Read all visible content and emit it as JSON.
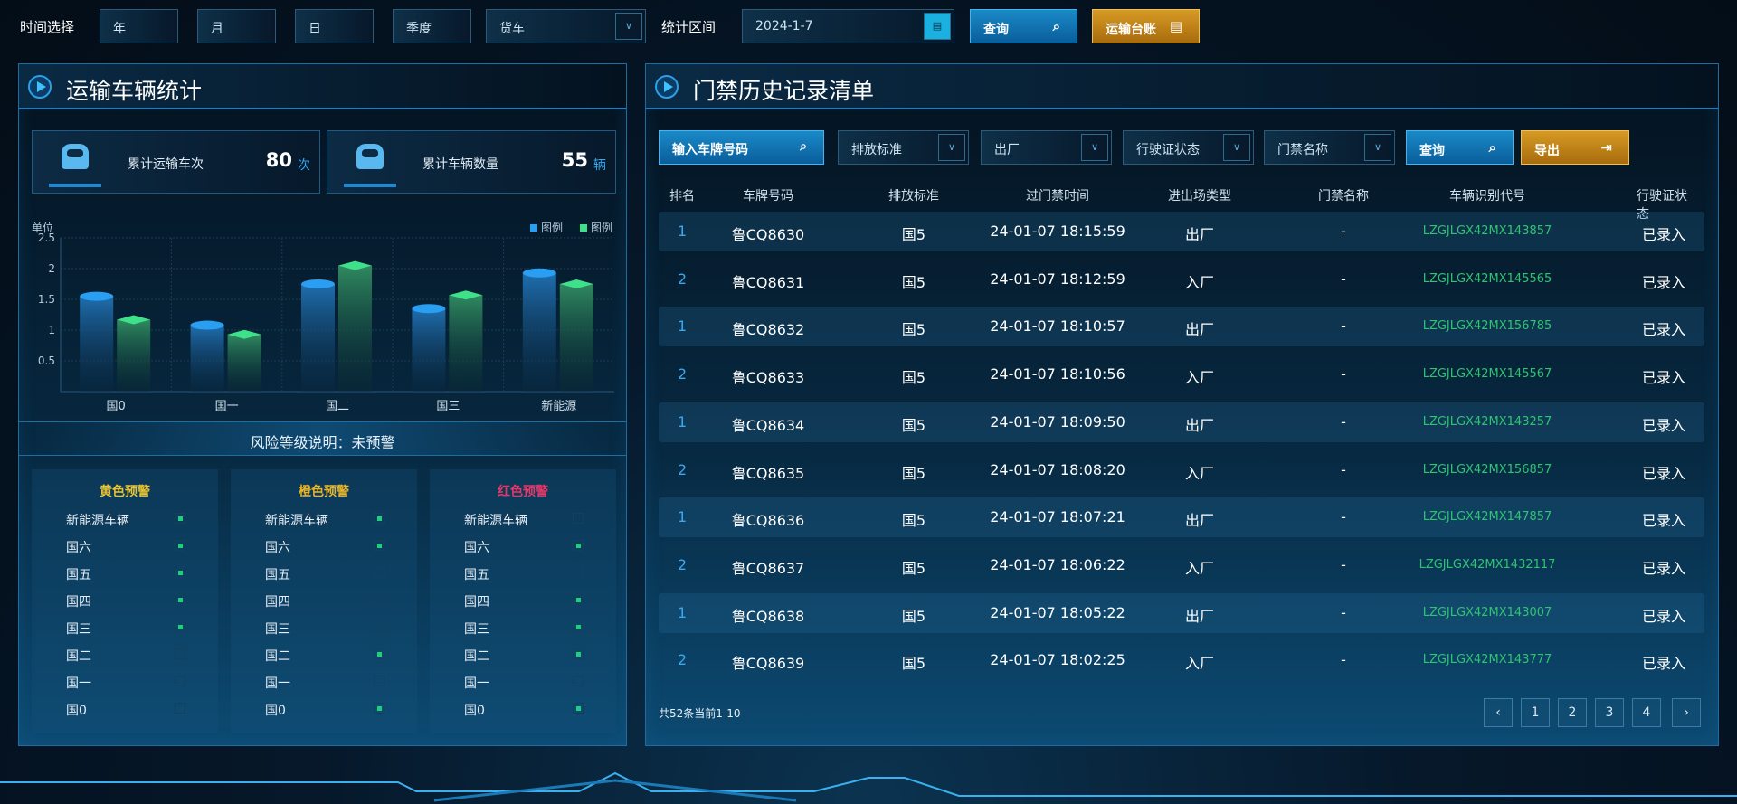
{
  "topbar": {
    "time_label": "时间选择",
    "year": "年",
    "month": "月",
    "day": "日",
    "quarter": "季度",
    "vehicle_type": "货车",
    "range_label": "统计区间",
    "date": "2024-1-7",
    "query": "查询",
    "ledger": "运输台账"
  },
  "left": {
    "title": "运输车辆统计",
    "stats": [
      {
        "label": "累计运输车次",
        "value": "80",
        "unit": "次"
      },
      {
        "label": "累计车辆数量",
        "value": "55",
        "unit": "辆"
      }
    ],
    "risk": "风险等级说明：未预警",
    "warnings": [
      {
        "title": "黄色预警",
        "color": "#e8c431",
        "rows": [
          {
            "label": "新能源车辆",
            "on": true
          },
          {
            "label": "国六",
            "on": true
          },
          {
            "label": "国五",
            "on": true
          },
          {
            "label": "国四",
            "on": true
          },
          {
            "label": "国三",
            "on": true
          },
          {
            "label": "国二",
            "on": false
          },
          {
            "label": "国一",
            "on": false
          },
          {
            "label": "国0",
            "on": false
          }
        ]
      },
      {
        "title": "橙色预警",
        "color": "#e8b52a",
        "rows": [
          {
            "label": "新能源车辆",
            "on": true
          },
          {
            "label": "国六",
            "on": true
          },
          {
            "label": "国五",
            "on": false
          },
          {
            "label": "国四",
            "on": false
          },
          {
            "label": "国三",
            "on": false
          },
          {
            "label": "国二",
            "on": true
          },
          {
            "label": "国一",
            "on": false
          },
          {
            "label": "国0",
            "on": true
          }
        ]
      },
      {
        "title": "红色预警",
        "color": "#e8366a",
        "rows": [
          {
            "label": "新能源车辆",
            "on": false
          },
          {
            "label": "国六",
            "on": true
          },
          {
            "label": "国五",
            "on": false
          },
          {
            "label": "国四",
            "on": true
          },
          {
            "label": "国三",
            "on": true
          },
          {
            "label": "国二",
            "on": true
          },
          {
            "label": "国一",
            "on": false
          },
          {
            "label": "国0",
            "on": true
          }
        ]
      }
    ]
  },
  "chart_data": {
    "type": "bar",
    "ylabel": "单位",
    "categories": [
      "国0",
      "国一",
      "国二",
      "国三",
      "新能源"
    ],
    "ylim": [
      0,
      2.5
    ],
    "yticks": [
      "0.5",
      "1",
      "1.5",
      "2",
      "2.5"
    ],
    "grid": true,
    "legend_position": "top-right",
    "series": [
      {
        "name": "图例",
        "color": "#2a9ef0",
        "values": [
          1.55,
          1.08,
          1.75,
          1.35,
          1.93
        ]
      },
      {
        "name": "图例",
        "color": "#3fe08a",
        "values": [
          1.17,
          0.93,
          2.05,
          1.57,
          1.75
        ]
      }
    ]
  },
  "right": {
    "title": "门禁历史记录清单",
    "filters": {
      "plate_placeholder": "输入车牌号码",
      "emission": "排放标准",
      "direction": "出厂",
      "license_status": "行驶证状态",
      "gate_name": "门禁名称",
      "query": "查询",
      "export": "导出"
    },
    "columns": [
      "排名",
      "车牌号码",
      "排放标准",
      "过门禁时间",
      "进出场类型",
      "门禁名称",
      "车辆识别代号",
      "行驶证状态"
    ],
    "rows": [
      [
        "1",
        "鲁CQ8630",
        "国5",
        "24-01-07 18:15:59",
        "出厂",
        "-",
        "LZGJLGX42MX143857",
        "已录入"
      ],
      [
        "2",
        "鲁CQ8631",
        "国5",
        "24-01-07 18:12:59",
        "入厂",
        "-",
        "LZGJLGX42MX145565",
        "已录入"
      ],
      [
        "1",
        "鲁CQ8632",
        "国5",
        "24-01-07 18:10:57",
        "出厂",
        "-",
        "LZGJLGX42MX156785",
        "已录入"
      ],
      [
        "2",
        "鲁CQ8633",
        "国5",
        "24-01-07 18:10:56",
        "入厂",
        "-",
        "LZGJLGX42MX145567",
        "已录入"
      ],
      [
        "1",
        "鲁CQ8634",
        "国5",
        "24-01-07 18:09:50",
        "出厂",
        "-",
        "LZGJLGX42MX143257",
        "已录入"
      ],
      [
        "2",
        "鲁CQ8635",
        "国5",
        "24-01-07 18:08:20",
        "入厂",
        "-",
        "LZGJLGX42MX156857",
        "已录入"
      ],
      [
        "1",
        "鲁CQ8636",
        "国5",
        "24-01-07 18:07:21",
        "出厂",
        "-",
        "LZGJLGX42MX147857",
        "已录入"
      ],
      [
        "2",
        "鲁CQ8637",
        "国5",
        "24-01-07 18:06:22",
        "入厂",
        "-",
        "LZGJLGX42MX1432117",
        "已录入"
      ],
      [
        "1",
        "鲁CQ8638",
        "国5",
        "24-01-07 18:05:22",
        "出厂",
        "-",
        "LZGJLGX42MX143007",
        "已录入"
      ],
      [
        "2",
        "鲁CQ8639",
        "国5",
        "24-01-07 18:02:25",
        "入厂",
        "-",
        "LZGJLGX42MX143777",
        "已录入"
      ]
    ],
    "summary": "共52条当前1-10",
    "pagination": {
      "prev": "‹",
      "pages": [
        "1",
        "2",
        "3",
        "4"
      ],
      "next": "›"
    }
  }
}
